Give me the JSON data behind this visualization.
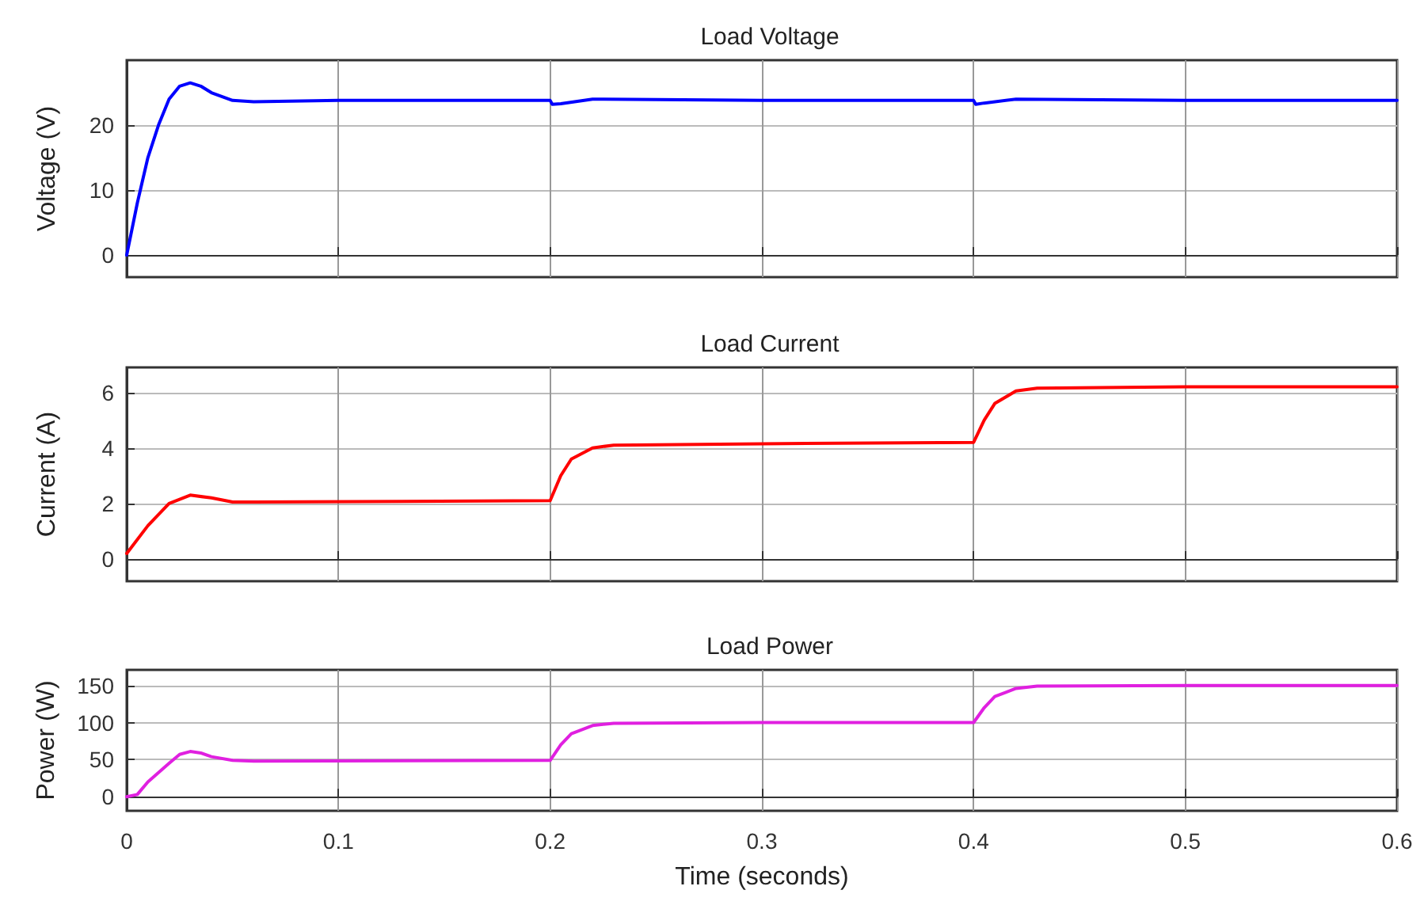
{
  "chart_data": [
    {
      "type": "line",
      "title": "Load Voltage",
      "ylabel": "Voltage (V)",
      "xlim": [
        0,
        0.6
      ],
      "xticks": [
        0,
        0.1,
        0.2,
        0.3,
        0.4,
        0.5,
        0.6
      ],
      "ylim": [
        -3.4,
        30
      ],
      "yticks": [
        0,
        10,
        20
      ],
      "grid": true,
      "tick_labels": "y",
      "series": [
        {
          "color": "#0000ff",
          "x": [
            0,
            0.005,
            0.01,
            0.015,
            0.02,
            0.025,
            0.03,
            0.035,
            0.04,
            0.05,
            0.06,
            0.1,
            0.2,
            0.201,
            0.205,
            0.22,
            0.3,
            0.4,
            0.401,
            0.405,
            0.42,
            0.5,
            0.6
          ],
          "values": [
            0,
            8,
            15,
            20,
            24,
            26,
            26.5,
            26,
            25,
            23.8,
            23.6,
            23.8,
            23.8,
            23.2,
            23.3,
            24,
            23.8,
            23.8,
            23.2,
            23.4,
            24,
            23.8,
            23.8
          ]
        }
      ]
    },
    {
      "type": "line",
      "title": "Load Current",
      "ylabel": "Current (A)",
      "xlim": [
        0,
        0.6
      ],
      "xticks": [
        0,
        0.1,
        0.2,
        0.3,
        0.4,
        0.5,
        0.6
      ],
      "ylim": [
        -0.8,
        6.9
      ],
      "yticks": [
        0,
        2,
        4,
        6
      ],
      "grid": true,
      "tick_labels": "y",
      "series": [
        {
          "color": "#ff0000",
          "x": [
            0,
            0.01,
            0.02,
            0.03,
            0.04,
            0.05,
            0.06,
            0.2,
            0.205,
            0.21,
            0.22,
            0.23,
            0.3,
            0.4,
            0.405,
            0.41,
            0.42,
            0.43,
            0.5,
            0.6
          ],
          "values": [
            0.2,
            1.2,
            2.0,
            2.3,
            2.2,
            2.05,
            2.05,
            2.1,
            3.0,
            3.6,
            4.0,
            4.1,
            4.15,
            4.2,
            5.0,
            5.6,
            6.05,
            6.15,
            6.2,
            6.2
          ]
        }
      ]
    },
    {
      "type": "line",
      "title": "Load Power",
      "ylabel": "Power (W)",
      "xlabel": "Time (seconds)",
      "xlim": [
        0,
        0.6
      ],
      "xticks": [
        0,
        0.1,
        0.2,
        0.3,
        0.4,
        0.5,
        0.6
      ],
      "ylim": [
        -19,
        171
      ],
      "yticks": [
        0,
        50,
        100,
        150
      ],
      "grid": true,
      "series": [
        {
          "color": "#e020e0",
          "x": [
            0,
            0.005,
            0.01,
            0.02,
            0.025,
            0.03,
            0.035,
            0.04,
            0.05,
            0.06,
            0.2,
            0.205,
            0.21,
            0.22,
            0.23,
            0.3,
            0.4,
            0.405,
            0.41,
            0.42,
            0.43,
            0.5,
            0.6
          ],
          "values": [
            0,
            3,
            20,
            45,
            57,
            61,
            59,
            54,
            49,
            48,
            49,
            70,
            85,
            96,
            99,
            100,
            100,
            120,
            135,
            146,
            149,
            150,
            150
          ]
        }
      ]
    }
  ]
}
